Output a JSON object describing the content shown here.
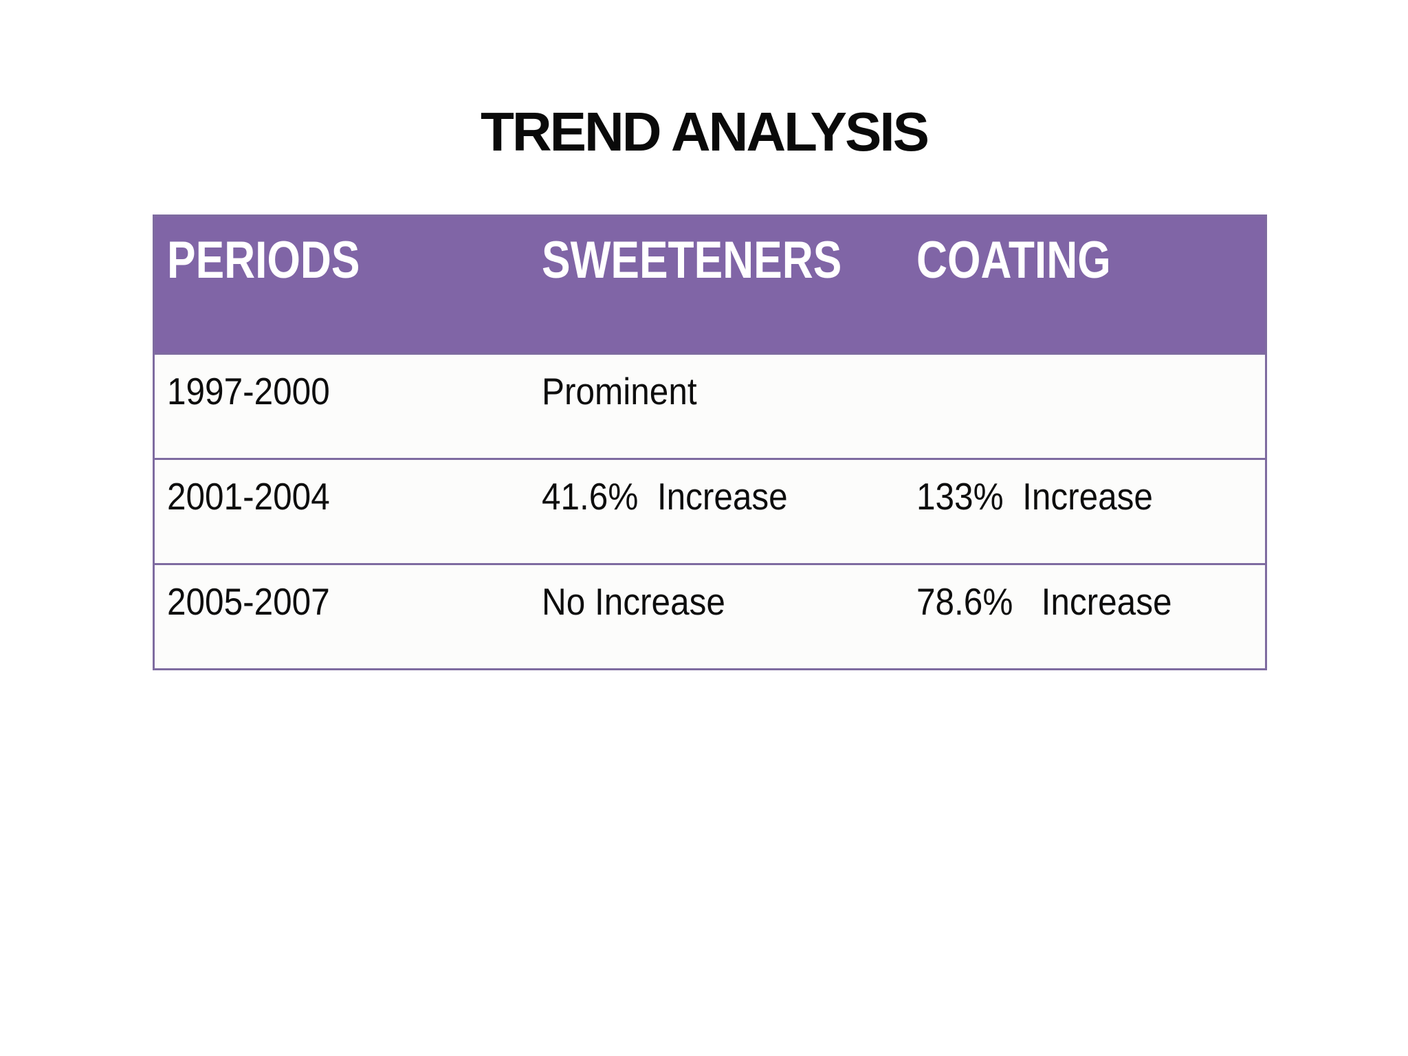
{
  "title": "TREND ANALYSIS",
  "table": {
    "headers": [
      "PERIODS",
      "SWEETENERS",
      "COATING"
    ],
    "rows": [
      [
        "1997-2000",
        "Prominent",
        ""
      ],
      [
        "2001-2004",
        "41.6%  Increase",
        "133%  Increase"
      ],
      [
        "2005-2007",
        "No Increase",
        "78.6%   Increase"
      ]
    ],
    "colors": {
      "header_bg": "#8065A6",
      "header_text": "#ffffff",
      "border": "#7E6BA0",
      "row_bg": "#FCFCFB",
      "cell_text": "#0d0d0d",
      "page_bg": "#ffffff",
      "title_text": "#0a0a0a"
    }
  }
}
